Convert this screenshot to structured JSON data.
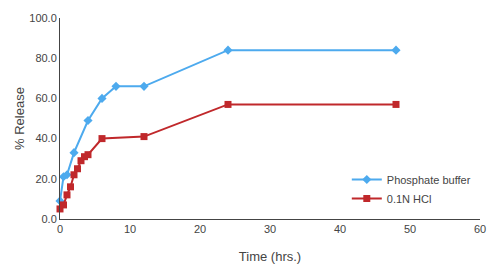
{
  "chart_data": {
    "type": "line",
    "xlabel": "Time (hrs.)",
    "ylabel": "% Release",
    "series": [
      {
        "name": "Phosphate buffer",
        "color": "#4DAAEE",
        "marker": "diamond",
        "x": [
          0,
          0.5,
          1,
          2,
          4,
          6,
          8,
          12,
          24,
          48
        ],
        "values": [
          9,
          21,
          22,
          33,
          49,
          60,
          66,
          66,
          84,
          84
        ]
      },
      {
        "name": "0.1N HCl",
        "color": "#C0282B",
        "marker": "square",
        "x": [
          0,
          0.5,
          1,
          1.5,
          2,
          2.5,
          3,
          3.5,
          4,
          6,
          12,
          24,
          48
        ],
        "values": [
          5,
          7,
          12,
          16,
          22,
          25,
          29,
          31,
          32,
          40,
          41,
          57,
          57
        ]
      }
    ],
    "xlim": [
      0,
      60
    ],
    "ylim": [
      0.0,
      100.0
    ],
    "xticks": [
      0,
      10,
      20,
      30,
      40,
      50,
      60
    ],
    "yticks": [
      {
        "value": 0.0,
        "label": "0.0"
      },
      {
        "value": 20.0,
        "label": "20.0"
      },
      {
        "value": 40.0,
        "label": "40.0"
      },
      {
        "value": 60.0,
        "label": "60.0"
      },
      {
        "value": 80.0,
        "label": "80.0"
      },
      {
        "value": 100.0,
        "label": "100.0"
      }
    ],
    "grid": false,
    "legend": "lower right"
  }
}
